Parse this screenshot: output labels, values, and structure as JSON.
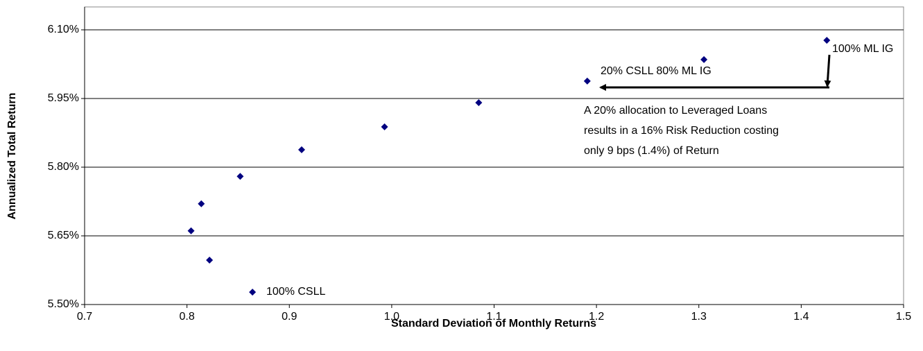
{
  "chart_data": {
    "type": "scatter",
    "x_label": "Standard Deviation of Monthly Returns",
    "y_label": "Annualized Total Return",
    "x": [
      0.864,
      0.822,
      0.804,
      0.814,
      0.852,
      0.912,
      0.993,
      1.085,
      1.191,
      1.305,
      1.425
    ],
    "values": [
      5.527,
      5.597,
      5.661,
      5.72,
      5.78,
      5.838,
      5.888,
      5.941,
      5.988,
      6.035,
      6.077
    ],
    "color": "#000080",
    "xlim": [
      0.7,
      1.5
    ],
    "xticks": [
      0.7,
      0.8,
      0.9,
      {
        "value": 1,
        "label": "1.0"
      },
      1.1,
      1.2,
      1.3,
      1.4,
      1.5
    ],
    "ylim": [
      5.5,
      6.15
    ],
    "yticks": [
      {
        "value": 5.5,
        "label": "5.50%"
      },
      {
        "value": 5.65,
        "label": "5.65%"
      },
      {
        "value": 5.8,
        "label": "5.80%"
      },
      {
        "value": 5.95,
        "label": "5.95%"
      },
      {
        "value": 6.1,
        "label": "6.10%"
      }
    ],
    "grid": true,
    "annotations": [
      "100% CSLL",
      "20% CSLL 80% ML IG",
      "100% ML IG",
      [
        "A 20% allocation to Leveraged Loans",
        "results in a 16% Risk Reduction costing",
        "only 9 bps (1.4%) of Return"
      ]
    ]
  }
}
